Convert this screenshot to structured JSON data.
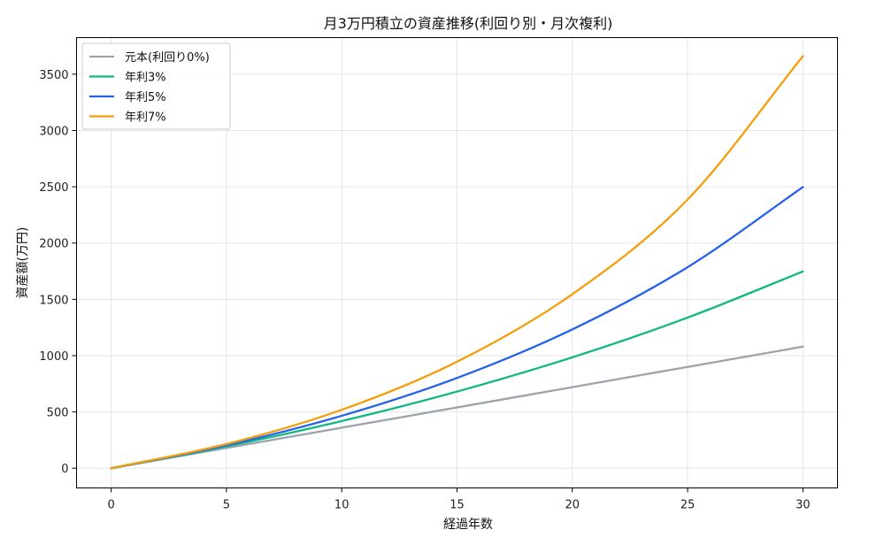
{
  "chart_data": {
    "type": "line",
    "title": "月3万円積立の資産推移(利回り別・月次複利)",
    "xlabel": "経過年数",
    "ylabel": "資産額(万円)",
    "xlim": [
      -1.5,
      31.5
    ],
    "ylim": [
      -175,
      3825
    ],
    "xticks": [
      0,
      5,
      10,
      15,
      20,
      25,
      30
    ],
    "yticks": [
      0,
      500,
      1000,
      1500,
      2000,
      2500,
      3000,
      3500
    ],
    "grid": true,
    "legend_position": "top-left",
    "x": [
      0,
      5,
      10,
      15,
      20,
      25,
      30
    ],
    "series": [
      {
        "name": "元本(利回り0%)",
        "color": "#9ca3af",
        "values": [
          0,
          180,
          360,
          540,
          720,
          900,
          1080
        ]
      },
      {
        "name": "年利3%",
        "color": "#10b981",
        "values": [
          0,
          194,
          419,
          681,
          985,
          1338,
          1748
        ]
      },
      {
        "name": "年利5%",
        "color": "#2563eb",
        "values": [
          0,
          204,
          466,
          802,
          1233,
          1786,
          2497
        ]
      },
      {
        "name": "年利7%",
        "color": "#f59e0b",
        "values": [
          0,
          215,
          519,
          946,
          1546,
          2387,
          3660
        ]
      }
    ]
  }
}
